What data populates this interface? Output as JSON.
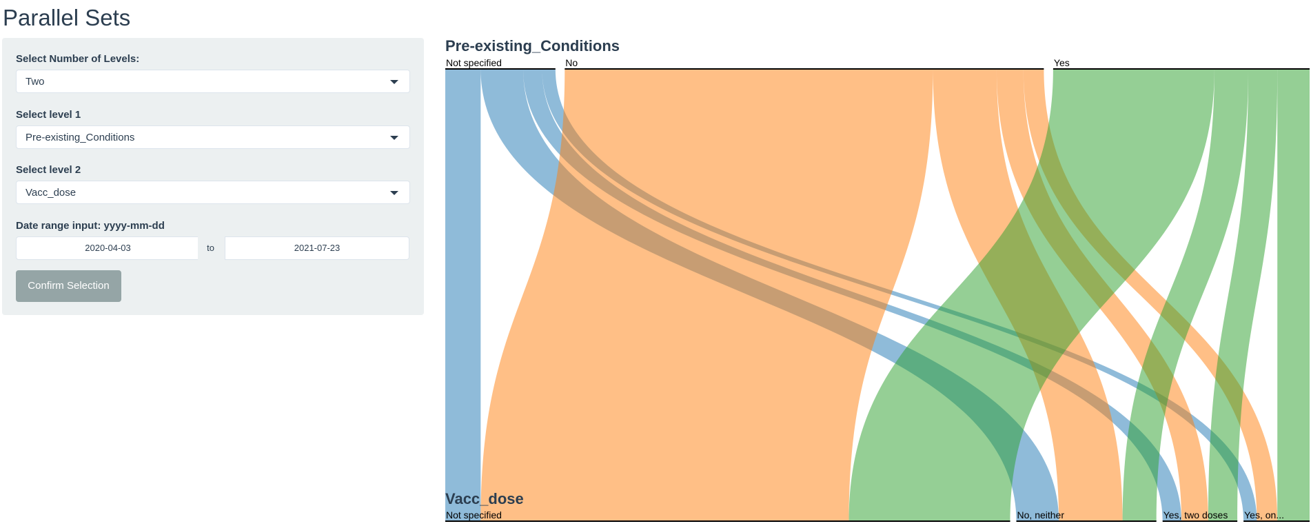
{
  "page": {
    "title": "Parallel Sets"
  },
  "sidebar": {
    "levels_label": "Select Number of Levels:",
    "levels_value": "Two",
    "level1_label": "Select level 1",
    "level1_value": "Pre-existing_Conditions",
    "level2_label": "Select level 2",
    "level2_value": "Vacc_dose",
    "date_label": "Date range input: yyyy-mm-dd",
    "date_start": "2020-04-03",
    "date_sep": "to",
    "date_end": "2021-07-23",
    "confirm_label": "Confirm Selection"
  },
  "chart_data": {
    "type": "parallel_sets",
    "dimensions": [
      {
        "name": "Pre-existing_Conditions",
        "categories": [
          {
            "label": "Not specified",
            "color": "#1f77b4"
          },
          {
            "label": "No",
            "color": "#ff7f0e"
          },
          {
            "label": "Yes",
            "color": "#2ca02c"
          }
        ]
      },
      {
        "name": "Vacc_dose",
        "categories": [
          {
            "label": "Not specified"
          },
          {
            "label": "No, neither"
          },
          {
            "label": "Yes, two doses"
          },
          {
            "label": "Yes, on..."
          }
        ]
      }
    ],
    "flows": [
      {
        "from": "Not specified",
        "to": "Not specified",
        "value": 45
      },
      {
        "from": "Not specified",
        "to": "No, neither",
        "value": 54
      },
      {
        "from": "Not specified",
        "to": "Yes, two doses",
        "value": 24
      },
      {
        "from": "Not specified",
        "to": "Yes, on...",
        "value": 17
      },
      {
        "from": "No",
        "to": "Not specified",
        "value": 468
      },
      {
        "from": "No",
        "to": "No, neither",
        "value": 81
      },
      {
        "from": "No",
        "to": "Yes, two doses",
        "value": 34
      },
      {
        "from": "No",
        "to": "Yes, on...",
        "value": 26
      },
      {
        "from": "Yes",
        "to": "Not specified",
        "value": 205
      },
      {
        "from": "Yes",
        "to": "No, neither",
        "value": 43
      },
      {
        "from": "Yes",
        "to": "Yes, two doses",
        "value": 37
      },
      {
        "from": "Yes",
        "to": "Yes, on...",
        "value": 41
      }
    ]
  }
}
